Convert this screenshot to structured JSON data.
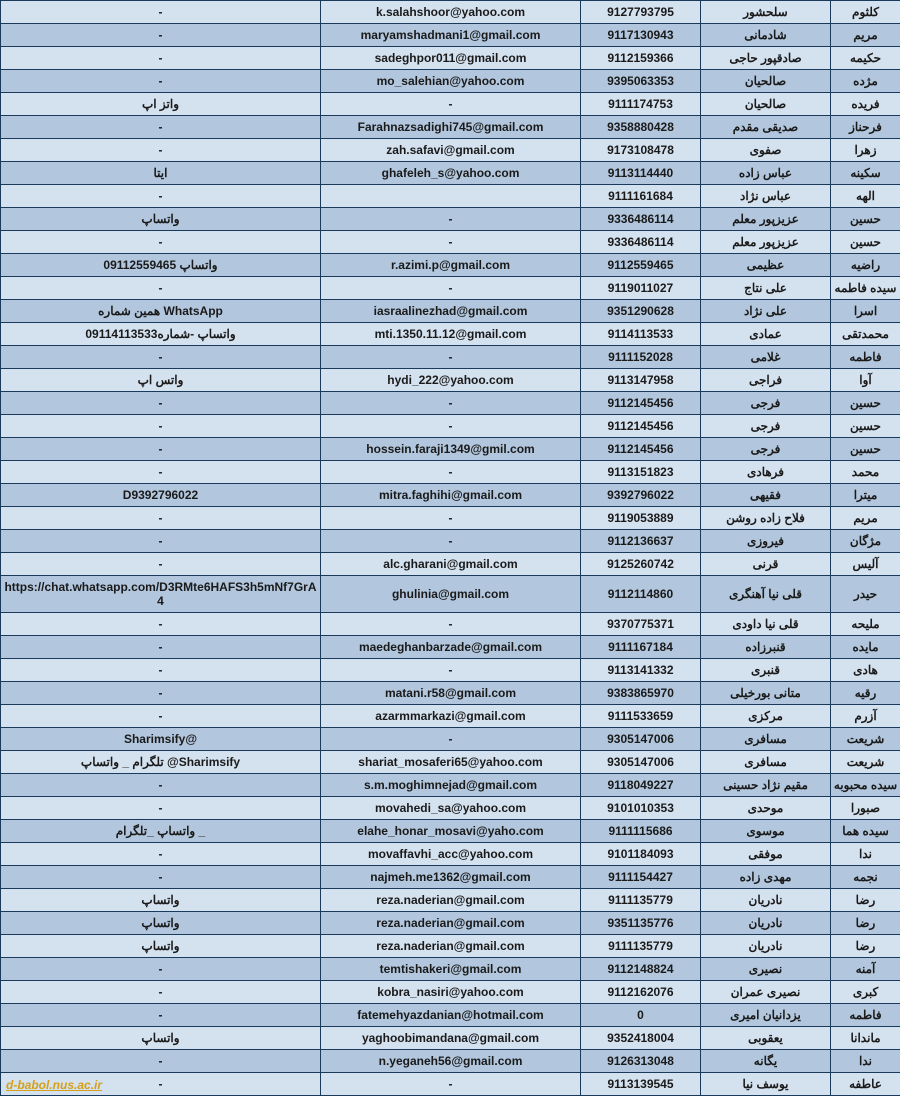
{
  "table": {
    "col_widths": {
      "notes": 320,
      "email": 260,
      "phone": 120,
      "last": 130,
      "first": 70
    },
    "row_colors": {
      "odd": "#d4e1ef",
      "even": "#b2c7de"
    },
    "border_color": "#1a3a5c",
    "font_size": 12,
    "font_weight": "bold",
    "rows": [
      {
        "notes": "-",
        "email": "k.salahshoor@yahoo.com",
        "phone": "‪9127793795‬",
        "last": "سلحشور",
        "first": "کلثوم"
      },
      {
        "notes": "-",
        "email": "maryamshadmani1@gmail.com",
        "phone": "‪9117130943‬",
        "last": "شادمانی",
        "first": "مریم"
      },
      {
        "notes": "-",
        "email": "sadeghpor011@gmail.com",
        "phone": "‪9112159366‬",
        "last": "صادقپور حاجی",
        "first": "حکیمه"
      },
      {
        "notes": "-",
        "email": "mo_salehian@yahoo.com",
        "phone": "‪9395063353‬",
        "last": "صالحیان",
        "first": "مژده"
      },
      {
        "notes": "واتز اپ",
        "email": "-",
        "phone": "‪9111174753‬",
        "last": "صالحیان",
        "first": "فریده"
      },
      {
        "notes": "-",
        "email": "Farahnazsadighi745@gmail.com",
        "phone": "‪9358880428‬",
        "last": "صدیقی مقدم",
        "first": "فرحناز"
      },
      {
        "notes": "-",
        "email": "zah.safavi@gmail.com",
        "phone": "‪9173108478‬",
        "last": "صفوی",
        "first": "زهرا"
      },
      {
        "notes": "ایتا",
        "email": "ghafeleh_s@yahoo.com",
        "phone": "‪9113114440‬",
        "last": "عباس زاده",
        "first": "سکینه"
      },
      {
        "notes": "-",
        "email": "",
        "phone": "‪9111161684‬",
        "last": "عباس نژاد",
        "first": "الهه"
      },
      {
        "notes": "واتساپ",
        "email": "-",
        "phone": "‪9336486114‬",
        "last": "عزیزپور معلم",
        "first": "حسین"
      },
      {
        "notes": "-",
        "email": "-",
        "phone": "‪9336486114‬",
        "last": "عزیزپور معلم",
        "first": "حسین"
      },
      {
        "notes": "واتساپ 09112559465",
        "email": "r.azimi.p@gmail.com",
        "phone": "‪9112559465‬",
        "last": "عظیمی",
        "first": "راضیه"
      },
      {
        "notes": "-",
        "email": "-",
        "phone": "‪9119011027‬",
        "last": "علی نتاج",
        "first": "سیده فاطمه"
      },
      {
        "notes": "همین شماره WhatsApp",
        "email": "iasraalinezhad@gmail.com",
        "phone": "‪9351290628‬",
        "last": "علی نژاد",
        "first": "اسرا"
      },
      {
        "notes": "واتساپ -شماره09114113533",
        "email": "mti.1350.11.12@gmail.com",
        "phone": "‪9114113533‬",
        "last": "عمادی",
        "first": "محمدتقی"
      },
      {
        "notes": "-",
        "email": "-",
        "phone": "‪9111152028‬",
        "last": "غلامی",
        "first": "فاطمه"
      },
      {
        "notes": "واتس اپ",
        "email": "hydi_222@yahoo.com",
        "phone": "‪9113147958‬",
        "last": "فراجی",
        "first": "آوا"
      },
      {
        "notes": "-",
        "email": "-",
        "phone": "‪9112145456‬",
        "last": "فرجی",
        "first": "حسین"
      },
      {
        "notes": "-",
        "email": "-",
        "phone": "‪9112145456‬",
        "last": "فرجی",
        "first": "حسین"
      },
      {
        "notes": "-",
        "email": "hossein.faraji1349@gmil.com",
        "phone": "‪9112145456‬",
        "last": "فرجی",
        "first": "حسین"
      },
      {
        "notes": "-",
        "email": "-",
        "phone": "‪9113151823‬",
        "last": "فرهادی",
        "first": "محمد"
      },
      {
        "notes": "‪D9392796022‬",
        "email": "mitra.faghihi@gmail.com",
        "phone": "‪9392796022‬",
        "last": "فقیهی",
        "first": "میترا"
      },
      {
        "notes": "-",
        "email": "-",
        "phone": "‪9119053889‬",
        "last": "فلاح زاده روشن",
        "first": "مریم"
      },
      {
        "notes": "-",
        "email": "-",
        "phone": "‪9112136637‬",
        "last": "فیروزی",
        "first": "مژگان"
      },
      {
        "notes": "-",
        "email": "alc.gharani@gmail.com",
        "phone": "‪9125260742‬",
        "last": "قرنی",
        "first": "آلیس"
      },
      {
        "notes": "https://chat.whatsapp.com/D3RMte6HAFS3h5mNf7GrA4",
        "email": "ghulinia@gmail.com",
        "phone": "‪9112114860‬",
        "last": "قلی نیا آهنگری",
        "first": "حیدر",
        "tall": true
      },
      {
        "notes": "-",
        "email": "-",
        "phone": "‪9370775371‬",
        "last": "قلی نیا داودی",
        "first": "ملیحه"
      },
      {
        "notes": "-",
        "email": "maedeghanbarzade@gmail.com",
        "phone": "‪9111167184‬",
        "last": "قنبرزاده",
        "first": "مایده"
      },
      {
        "notes": "-",
        "email": "-",
        "phone": "‪9113141332‬",
        "last": "قنبری",
        "first": "هادی"
      },
      {
        "notes": "-",
        "email": "matani.r58@gmail.com",
        "phone": "‪9383865970‬",
        "last": "متانی بورخیلی",
        "first": "رقیه"
      },
      {
        "notes": "-",
        "email": "azarmmarkazi@gmail.com",
        "phone": "‪9111533659‬",
        "last": "مرکزی",
        "first": "آزرم"
      },
      {
        "notes": "Sharimsify@",
        "email": "-",
        "phone": "‪9305147006‬",
        "last": "مسافری",
        "first": "شریعت"
      },
      {
        "notes": "تلگرام _ واتساپ @Sharimsify",
        "email": "shariat_mosaferi65@yahoo.com",
        "phone": "‪9305147006‬",
        "last": "مسافری",
        "first": "شریعت"
      },
      {
        "notes": "-",
        "email": "s.m.moghimnejad@gmail.com",
        "phone": "‪9118049227‬",
        "last": "مقیم نژاد حسینی",
        "first": "سیده محبوبه"
      },
      {
        "notes": "-",
        "email": "movahedi_sa@yahoo.com",
        "phone": "‪9101010353‬",
        "last": "موحدی",
        "first": "صبورا"
      },
      {
        "notes": "واتساپ _تلگرام _",
        "email": "elahe_honar_mosavi@yaho.com",
        "phone": "‪9111115686‬",
        "last": "موسوی",
        "first": "سیده هما"
      },
      {
        "notes": "-",
        "email": "movaffavhi_acc@yahoo.com",
        "phone": "‪9101184093‬",
        "last": "موفقی",
        "first": "ندا"
      },
      {
        "notes": "-",
        "email": "najmeh.me1362@gmail.com",
        "phone": "‪9111154427‬",
        "last": "مهدی زاده",
        "first": "نجمه"
      },
      {
        "notes": "واتساپ",
        "email": "reza.naderian@gmail.com",
        "phone": "‪9111135779‬",
        "last": "نادریان",
        "first": "رضا"
      },
      {
        "notes": "واتساپ",
        "email": "reza.naderian@gmail.com",
        "phone": "‪9351135776‬",
        "last": "نادریان",
        "first": "رضا"
      },
      {
        "notes": "واتساپ",
        "email": "reza.naderian@gmail.com",
        "phone": "‪9111135779‬",
        "last": "نادریان",
        "first": "رضا"
      },
      {
        "notes": "-",
        "email": "temtishakeri@gmail.com",
        "phone": "‪9112148824‬",
        "last": "نصیری",
        "first": "آمنه"
      },
      {
        "notes": "-",
        "email": "kobra_nasiri@yahoo.com",
        "phone": "‪9112162076‬",
        "last": "نصیری عمران",
        "first": "کبری"
      },
      {
        "notes": "-",
        "email": "fatemehyazdanian@hotmail.com",
        "phone": "‪0‬",
        "last": "یزدانیان امیری",
        "first": "فاطمه"
      },
      {
        "notes": "واتساپ",
        "email": "yaghoobimandana@gmail.com",
        "phone": "‪9352418004‬",
        "last": "یعقوبی",
        "first": "ماندانا"
      },
      {
        "notes": "-",
        "email": "n.yeganeh56@gmail.com",
        "phone": "‪9126313048‬",
        "last": "یگانه",
        "first": "ندا"
      },
      {
        "notes": "-",
        "email": "-",
        "phone": "‪9113139545‬",
        "last": "یوسف نیا",
        "first": "عاطفه"
      }
    ]
  },
  "footer": {
    "link_text": "d-babol.nus.ac.ir",
    "link_color": "#d4a017"
  }
}
